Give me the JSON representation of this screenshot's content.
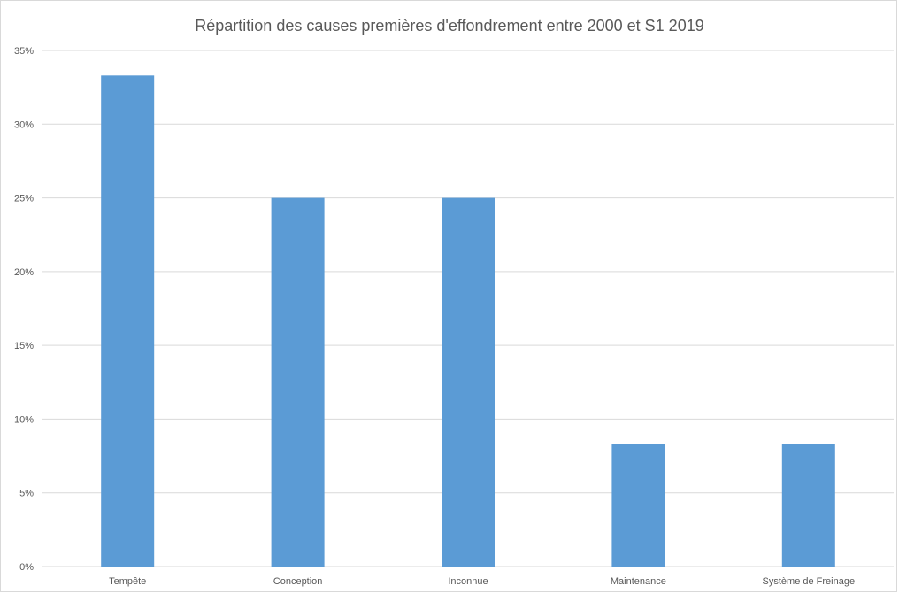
{
  "chart_data": {
    "type": "bar",
    "title": "Répartition des causes premières d'effondrement entre 2000 et S1 2019",
    "xlabel": "",
    "ylabel": "",
    "categories": [
      "Tempête",
      "Conception",
      "Inconnue",
      "Maintenance",
      "Système de Freinage"
    ],
    "values": [
      33.3,
      25,
      25,
      8.3,
      8.3
    ],
    "ylim": [
      0,
      35
    ],
    "yticks": [
      "0%",
      "5%",
      "10%",
      "15%",
      "20%",
      "25%",
      "30%",
      "35%"
    ],
    "grid": true,
    "legend": "none",
    "bar_color": "#5b9bd5",
    "grid_color": "#d9d9d9"
  }
}
